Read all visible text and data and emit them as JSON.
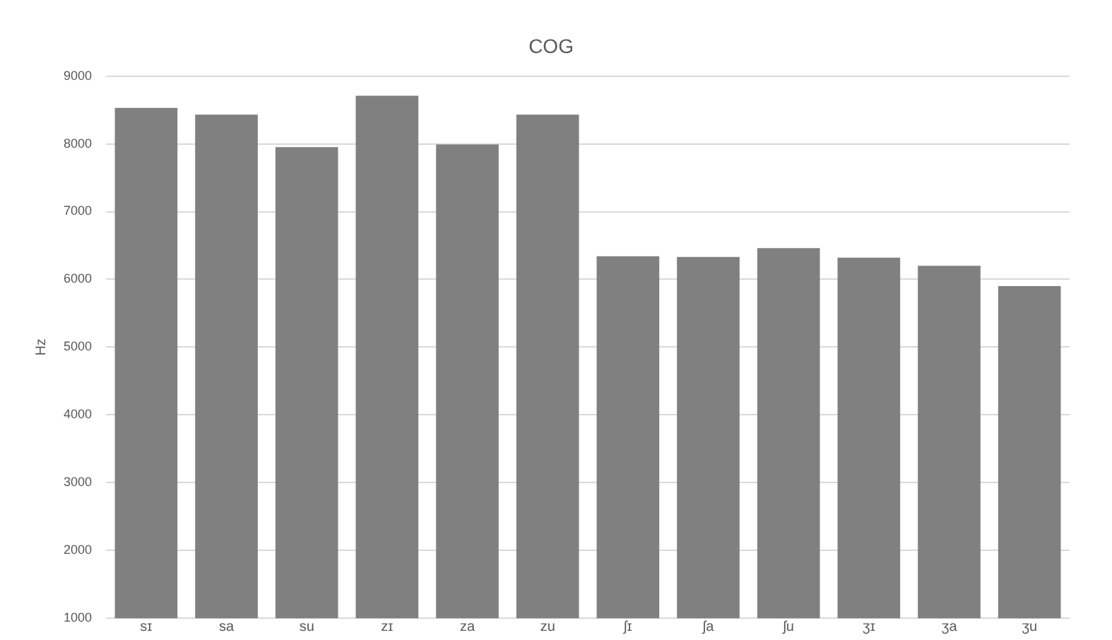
{
  "chart_data": {
    "type": "bar",
    "title": "COG",
    "ylabel": "Hz",
    "categories": [
      "sɪ",
      "sa",
      "su",
      "zɪ",
      "za",
      "zu",
      "ʃɪ",
      "ʃa",
      "ʃu",
      "ʒɪ",
      "ʒa",
      "ʒu"
    ],
    "values": [
      8530,
      8430,
      7950,
      8710,
      7990,
      8430,
      6340,
      6330,
      6460,
      6320,
      6200,
      5900
    ],
    "color": "#808080",
    "ylim": [
      1000,
      9000
    ],
    "yticks": [
      1000,
      2000,
      3000,
      4000,
      5000,
      6000,
      7000,
      8000,
      9000
    ],
    "grid": "y"
  }
}
